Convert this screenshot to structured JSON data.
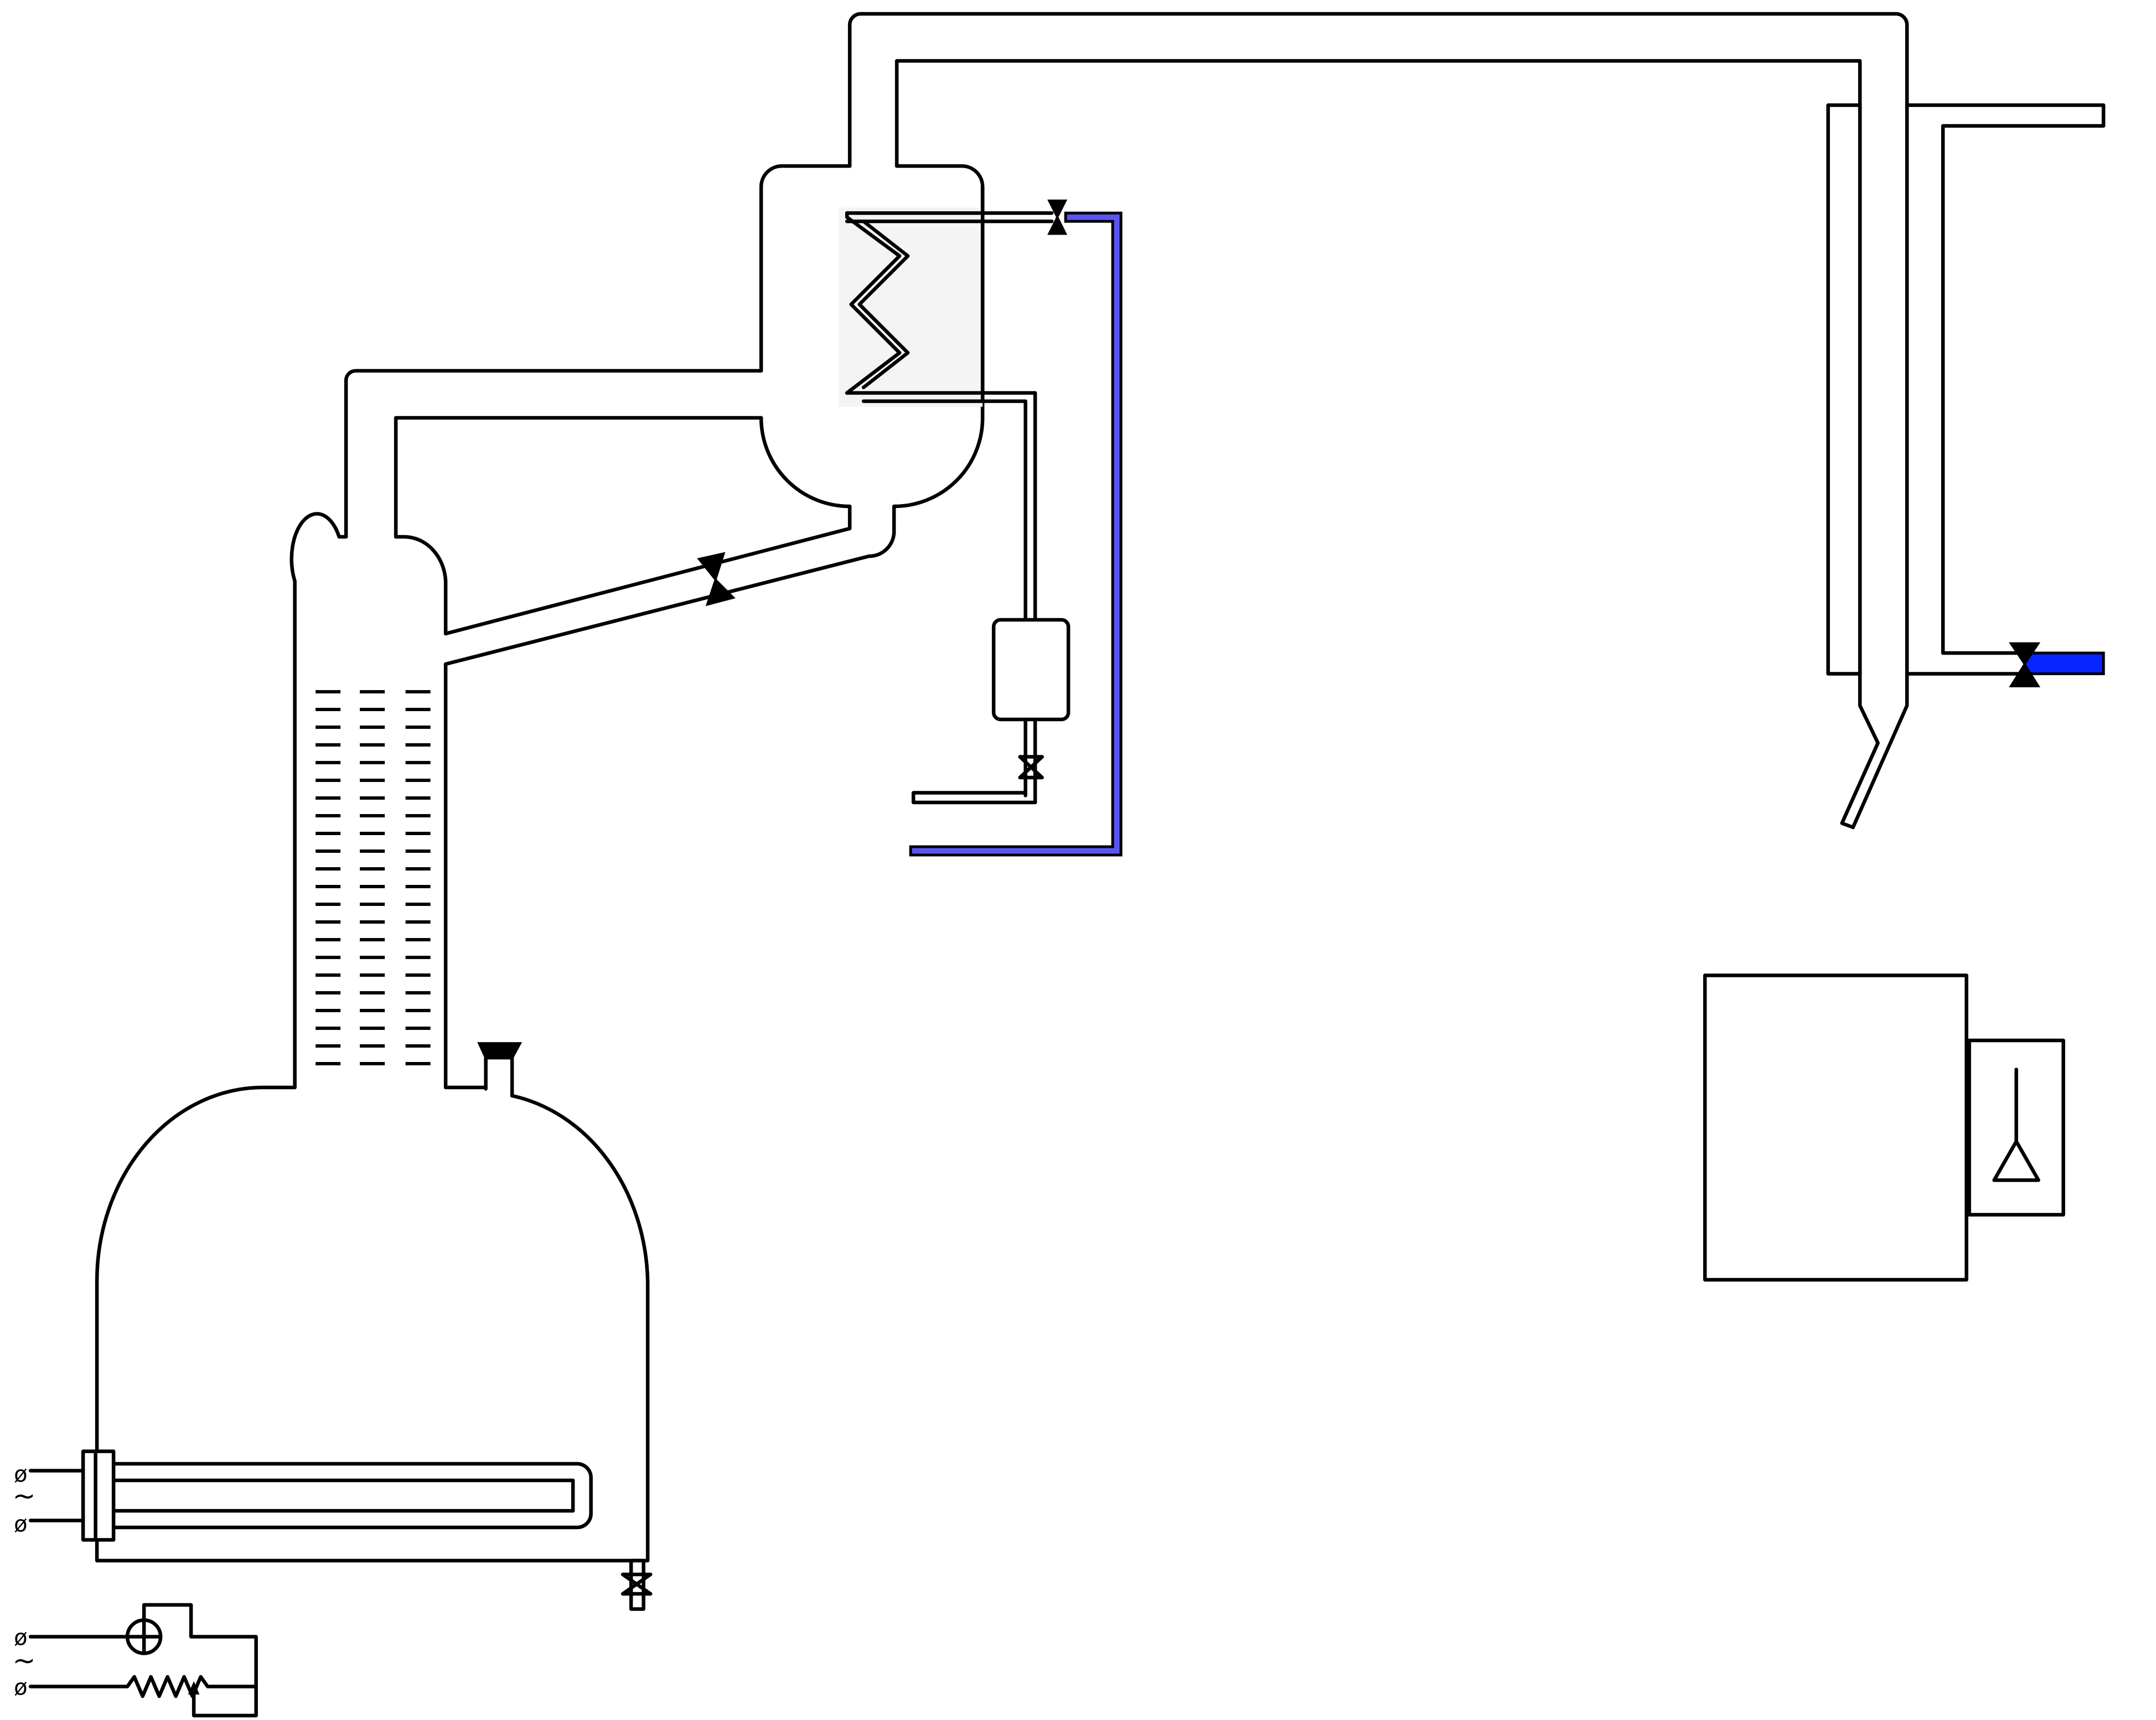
{
  "diagram": {
    "description_free": true,
    "colors": {
      "line": "#000000",
      "background": "#ffffff",
      "condenser_housing": "#f4f4f4",
      "cooling_water_return": "#5b55f0",
      "cooling_water_supply": "#0a24ff"
    },
    "terminals": {
      "heater_symbols": [
        "ø",
        "~",
        "ø"
      ],
      "controller_symbols": [
        "ø",
        "~",
        "ø"
      ]
    },
    "components": [
      "boiler",
      "rectification-column",
      "column-packing",
      "dephlegmator",
      "coil",
      "reflux-line",
      "reflux-valve",
      "distillate-receiver",
      "outlet-valve",
      "vapor-line",
      "product-condenser",
      "cooling-water-valve",
      "heating-element",
      "power-regulator",
      "drain-valve",
      "safety-valve",
      "collection-tank",
      "alcoholmeter"
    ]
  }
}
